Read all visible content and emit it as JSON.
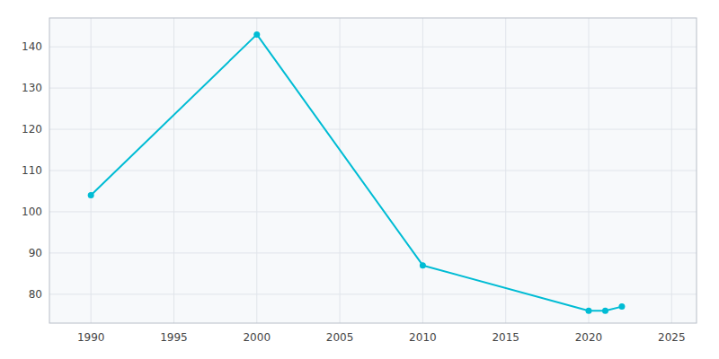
{
  "chart_data": {
    "type": "line",
    "x": [
      1990,
      2000,
      2010,
      2020,
      2021,
      2022
    ],
    "values": [
      104,
      143,
      87,
      76,
      76,
      77
    ],
    "color": "#00BCD4",
    "marker": "circle",
    "xlim": [
      1987.5,
      2026.5
    ],
    "ylim": [
      73,
      147
    ],
    "xticks": [
      1990,
      1995,
      2000,
      2005,
      2010,
      2015,
      2020,
      2025
    ],
    "yticks": [
      80,
      90,
      100,
      110,
      120,
      130,
      140
    ],
    "grid": true
  }
}
